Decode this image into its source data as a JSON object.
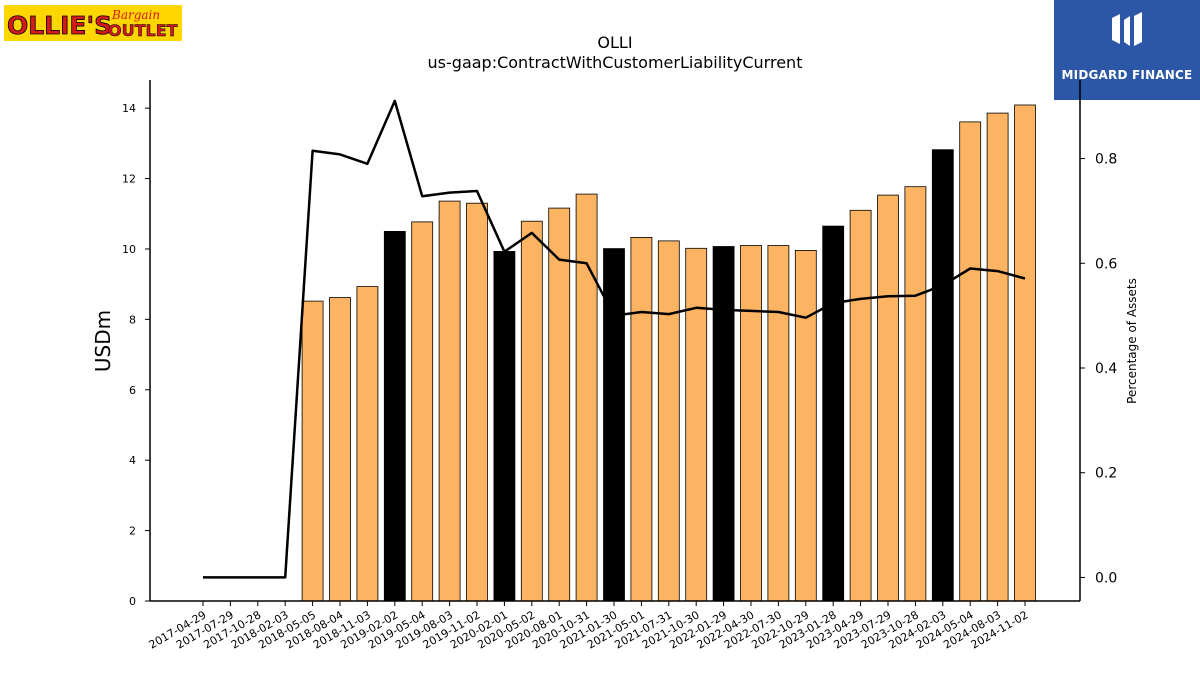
{
  "logos": {
    "left": {
      "line1": "OLLIE'S",
      "line2a": "Bargain",
      "line2b": "OUTLET"
    },
    "right": {
      "name": "MIDGARD FINANCE"
    }
  },
  "colors": {
    "bar_default": "#fdb462",
    "bar_highlight": "#000000",
    "line": "#000000",
    "brand_blue": "#2b57a6",
    "logo_yellow": "#ffd700",
    "logo_red": "#d7191c"
  },
  "chart_data": {
    "type": "bar",
    "title": "OLLI",
    "subtitle": "us-gaap:ContractWithCustomerLiabilityCurrent",
    "ylabel": "USDm",
    "y2label": "Percentage of Assets",
    "ylim": [
      0,
      14.8
    ],
    "y2lim": [
      -0.045,
      0.95
    ],
    "yticks": [
      "0",
      "2",
      "4",
      "6",
      "8",
      "10",
      "12",
      "14"
    ],
    "y2ticks": [
      "0.0",
      "0.2",
      "0.4",
      "0.6",
      "0.8"
    ],
    "categories": [
      "2017-04-29",
      "2017-07-29",
      "2017-10-28",
      "2018-02-03",
      "2018-05-05",
      "2018-08-04",
      "2018-11-03",
      "2019-02-02",
      "2019-05-04",
      "2019-08-03",
      "2019-11-02",
      "2020-02-01",
      "2020-05-02",
      "2020-08-01",
      "2020-10-31",
      "2021-01-30",
      "2021-05-01",
      "2021-07-31",
      "2021-10-30",
      "2022-01-29",
      "2022-04-30",
      "2022-07-30",
      "2022-10-29",
      "2023-01-28",
      "2023-04-29",
      "2023-07-29",
      "2023-10-28",
      "2024-02-03",
      "2024-05-04",
      "2024-08-03",
      "2024-11-02"
    ],
    "series": [
      {
        "type": "bar",
        "values": [
          0,
          0,
          0,
          0,
          8.52,
          8.62,
          8.93,
          10.5,
          10.77,
          11.36,
          11.3,
          9.93,
          10.79,
          11.16,
          11.56,
          10.01,
          10.33,
          10.23,
          10.02,
          10.07,
          10.1,
          10.1,
          9.96,
          10.65,
          11.1,
          11.53,
          11.77,
          12.82,
          13.61,
          13.86,
          14.09
        ],
        "highlight": [
          false,
          false,
          false,
          false,
          false,
          false,
          false,
          true,
          false,
          false,
          false,
          true,
          false,
          false,
          false,
          true,
          false,
          false,
          false,
          true,
          false,
          false,
          false,
          true,
          false,
          false,
          false,
          true,
          false,
          false,
          false
        ]
      },
      {
        "type": "line",
        "axis": "right",
        "values": [
          0,
          0,
          0,
          0,
          0.815,
          0.808,
          0.79,
          0.91,
          0.728,
          0.735,
          0.738,
          0.622,
          0.658,
          0.607,
          0.6,
          0.5,
          0.507,
          0.503,
          0.515,
          0.511,
          0.509,
          0.507,
          0.496,
          0.524,
          0.532,
          0.537,
          0.538,
          0.558,
          0.59,
          0.585,
          0.571
        ]
      }
    ],
    "grid": false,
    "legend": "none"
  }
}
